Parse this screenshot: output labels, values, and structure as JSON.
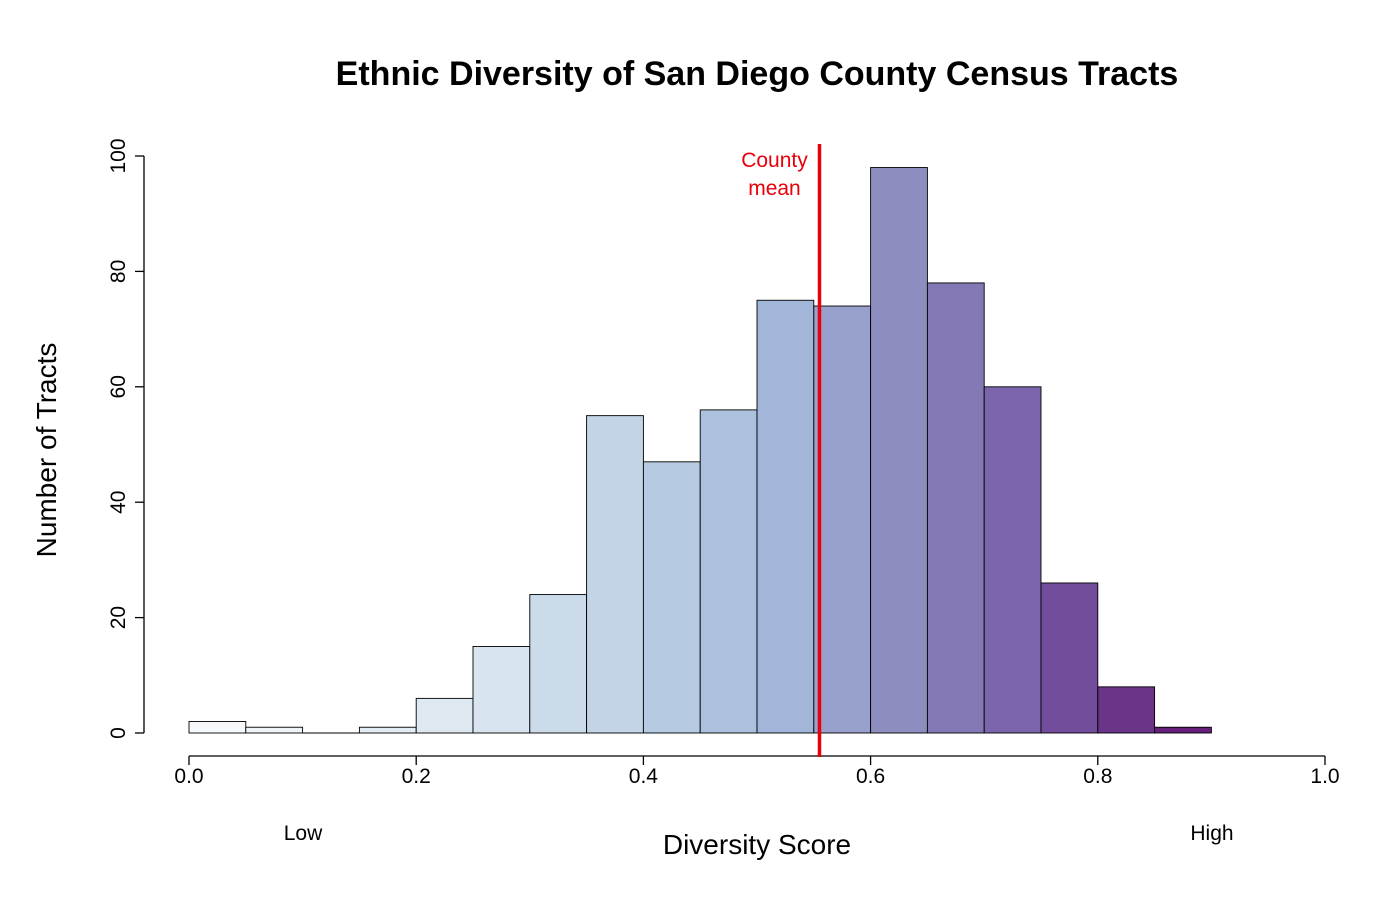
{
  "chart_data": {
    "type": "bar",
    "title": "Ethnic Diversity of San Diego County Census Tracts",
    "xlabel": "Diversity Score",
    "ylabel": "Number of Tracts",
    "xlim": [
      0,
      1
    ],
    "ylim": [
      0,
      100
    ],
    "x_ticks": [
      "0.0",
      "0.2",
      "0.4",
      "0.6",
      "0.8",
      "1.0"
    ],
    "y_ticks": [
      "0",
      "20",
      "40",
      "60",
      "80",
      "100"
    ],
    "bins": [
      {
        "x0": 0.0,
        "x1": 0.05,
        "value": 2
      },
      {
        "x0": 0.05,
        "x1": 0.1,
        "value": 1
      },
      {
        "x0": 0.1,
        "x1": 0.15,
        "value": 0
      },
      {
        "x0": 0.15,
        "x1": 0.2,
        "value": 1
      },
      {
        "x0": 0.2,
        "x1": 0.25,
        "value": 6
      },
      {
        "x0": 0.25,
        "x1": 0.3,
        "value": 15
      },
      {
        "x0": 0.3,
        "x1": 0.35,
        "value": 24
      },
      {
        "x0": 0.35,
        "x1": 0.4,
        "value": 55
      },
      {
        "x0": 0.4,
        "x1": 0.45,
        "value": 47
      },
      {
        "x0": 0.45,
        "x1": 0.5,
        "value": 56
      },
      {
        "x0": 0.5,
        "x1": 0.55,
        "value": 75
      },
      {
        "x0": 0.55,
        "x1": 0.6,
        "value": 74
      },
      {
        "x0": 0.6,
        "x1": 0.65,
        "value": 98
      },
      {
        "x0": 0.65,
        "x1": 0.7,
        "value": 78
      },
      {
        "x0": 0.7,
        "x1": 0.75,
        "value": 60
      },
      {
        "x0": 0.75,
        "x1": 0.8,
        "value": 26
      },
      {
        "x0": 0.8,
        "x1": 0.85,
        "value": 8
      },
      {
        "x0": 0.85,
        "x1": 0.9,
        "value": 1
      }
    ],
    "bar_colors": [
      "#f6f9fc",
      "#eef3f8",
      "#e7eef5",
      "#e3ecf3",
      "#dde8f1",
      "#d8e5f0",
      "#ccdbe9",
      "#c2d4e6",
      "#b6cae2",
      "#acc1dd",
      "#a1b6d8",
      "#98a1cb",
      "#8d8dbf",
      "#8479b5",
      "#7b66ad",
      "#714d9b",
      "#6a3489",
      "#651f7b"
    ],
    "mean_line": {
      "value": 0.555,
      "label_line1": "County",
      "label_line2": "mean",
      "color": "#e8000b"
    },
    "range_labels": {
      "low": "Low",
      "high": "High"
    },
    "grid": false
  }
}
